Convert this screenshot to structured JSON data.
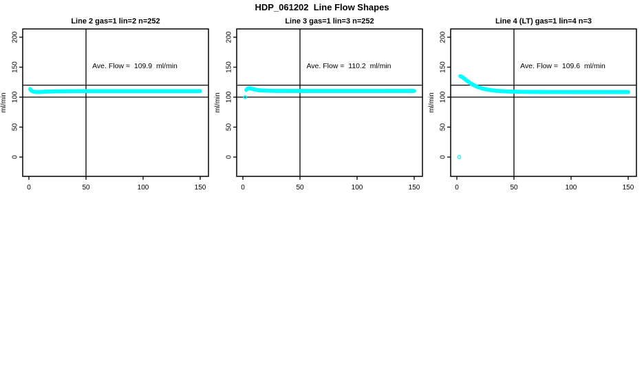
{
  "chart_data": {
    "type": "scatter",
    "title": "HDP_061202  Line Flow Shapes",
    "xlabel": "",
    "ylabel": "ml/min",
    "x_ticks": [
      0,
      50,
      100,
      150
    ],
    "y_ticks": [
      0,
      50,
      100,
      150,
      200
    ],
    "xlim": [
      -5,
      157
    ],
    "ylim": [
      -32,
      214
    ],
    "grid": false,
    "legend": "none",
    "point_color": "#00ffff",
    "axis_color": "#000000",
    "ref_lines_y": [
      100,
      120
    ],
    "ref_line_x": 50,
    "marker": {
      "shape": "open-circle",
      "radius": 2.2,
      "stroke_width": 1.4,
      "interp_step": 0.6
    },
    "plots": [
      {
        "title": "Line 2 gas=1 lin=2 n=252",
        "ave_flow": 109.9,
        "annotation": "Ave. Flow =  109.9  ml/min",
        "series": [
          {
            "name": "flow-shape",
            "points": [
              [
                1,
                113.5
              ],
              [
                2,
                111
              ],
              [
                3,
                109.8
              ],
              [
                4,
                109.2
              ],
              [
                5,
                108.8
              ],
              [
                6,
                108.6
              ],
              [
                7,
                108.5
              ],
              [
                8,
                108.5
              ],
              [
                9,
                108.6
              ],
              [
                10,
                108.7
              ],
              [
                12,
                108.9
              ],
              [
                14,
                109.1
              ],
              [
                16,
                109.3
              ],
              [
                18,
                109.4
              ],
              [
                20,
                109.5
              ],
              [
                25,
                109.7
              ],
              [
                30,
                109.8
              ],
              [
                40,
                109.9
              ],
              [
                50,
                110
              ],
              [
                60,
                110
              ],
              [
                70,
                110
              ],
              [
                80,
                110
              ],
              [
                90,
                110
              ],
              [
                100,
                110
              ],
              [
                110,
                110
              ],
              [
                120,
                110
              ],
              [
                130,
                110
              ],
              [
                140,
                110
              ],
              [
                150,
                110
              ]
            ]
          }
        ]
      },
      {
        "title": "Line 3 gas=1 lin=3 n=252",
        "ave_flow": 110.2,
        "annotation": "Ave. Flow =  110.2  ml/min",
        "series": [
          {
            "name": "outlier-point",
            "points": [
              [
                2,
                100
              ]
            ]
          },
          {
            "name": "flow-shape",
            "points": [
              [
                3,
                112
              ],
              [
                4,
                114
              ],
              [
                5,
                114.8
              ],
              [
                6,
                114.9
              ],
              [
                7,
                114.5
              ],
              [
                8,
                114
              ],
              [
                9,
                113.4
              ],
              [
                10,
                112.8
              ],
              [
                12,
                112
              ],
              [
                14,
                111.5
              ],
              [
                16,
                111.2
              ],
              [
                18,
                111
              ],
              [
                20,
                110.8
              ],
              [
                25,
                110.5
              ],
              [
                30,
                110.4
              ],
              [
                40,
                110.3
              ],
              [
                50,
                110.3
              ],
              [
                60,
                110.2
              ],
              [
                70,
                110.2
              ],
              [
                80,
                110.2
              ],
              [
                90,
                110.2
              ],
              [
                100,
                110.2
              ],
              [
                110,
                110.2
              ],
              [
                120,
                110.2
              ],
              [
                130,
                110.3
              ],
              [
                140,
                110.3
              ],
              [
                150,
                110.3
              ]
            ]
          }
        ]
      },
      {
        "title": "Line 4 (LT) gas=1 lin=4 n=3",
        "ave_flow": 109.6,
        "annotation": "Ave. Flow =  109.6  ml/min",
        "series": [
          {
            "name": "outlier-point",
            "points": [
              [
                2,
                0
              ]
            ]
          },
          {
            "name": "flow-shape",
            "points": [
              [
                3,
                135
              ],
              [
                4,
                134.2
              ],
              [
                5,
                133
              ],
              [
                6,
                131.5
              ],
              [
                7,
                130
              ],
              [
                8,
                128.5
              ],
              [
                9,
                127
              ],
              [
                10,
                125.6
              ],
              [
                12,
                123
              ],
              [
                14,
                120.8
              ],
              [
                16,
                118.9
              ],
              [
                18,
                117.2
              ],
              [
                20,
                115.8
              ],
              [
                22,
                114.6
              ],
              [
                24,
                113.6
              ],
              [
                26,
                112.8
              ],
              [
                28,
                112.1
              ],
              [
                30,
                111.5
              ],
              [
                35,
                110.5
              ],
              [
                40,
                109.8
              ],
              [
                45,
                109.4
              ],
              [
                50,
                109.1
              ],
              [
                60,
                108.8
              ],
              [
                70,
                108.6
              ],
              [
                80,
                108.5
              ],
              [
                90,
                108.5
              ],
              [
                100,
                108.4
              ],
              [
                110,
                108.4
              ],
              [
                120,
                108.4
              ],
              [
                130,
                108.4
              ],
              [
                140,
                108.4
              ],
              [
                150,
                108.4
              ]
            ]
          }
        ]
      }
    ]
  }
}
